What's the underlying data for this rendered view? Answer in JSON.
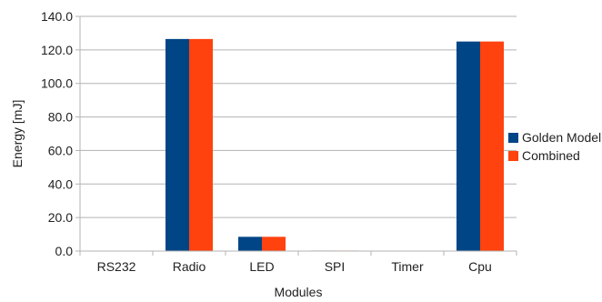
{
  "chart_data": {
    "type": "bar",
    "title": "",
    "xlabel": "Modules",
    "ylabel": "Energy [mJ]",
    "categories": [
      "RS232",
      "Radio",
      "LED",
      "SPI",
      "Timer",
      "Cpu"
    ],
    "series": [
      {
        "name": "Golden Model",
        "color": "#004586",
        "values": [
          0.0,
          126.5,
          8.5,
          0.3,
          0.0,
          125.0
        ]
      },
      {
        "name": "Combined",
        "color": "#ff420e",
        "values": [
          0.0,
          126.5,
          8.5,
          0.3,
          0.0,
          125.0
        ]
      }
    ],
    "ylim": [
      0,
      140
    ],
    "yticks": [
      "0.0",
      "20.0",
      "40.0",
      "60.0",
      "80.0",
      "100.0",
      "120.0",
      "140.0"
    ],
    "grid": true,
    "legend_position": "right"
  }
}
